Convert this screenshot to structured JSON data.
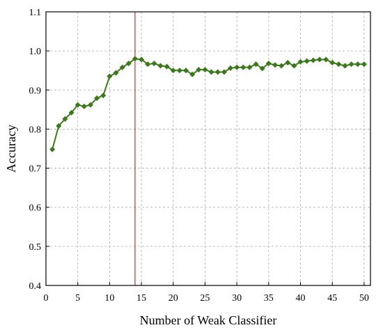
{
  "chart_data": {
    "type": "line",
    "xlabel": "Number of Weak Classifier",
    "ylabel": "Accuracy",
    "xlim": [
      0,
      51
    ],
    "ylim": [
      0.4,
      1.1
    ],
    "x_ticks": [
      0,
      5,
      10,
      15,
      20,
      25,
      30,
      35,
      40,
      45,
      50
    ],
    "x_tick_labels": [
      "0",
      "5",
      "10",
      "15",
      "20",
      "25",
      "30",
      "35",
      "40",
      "45",
      "50"
    ],
    "y_ticks": [
      0.4,
      0.5,
      0.6,
      0.7,
      0.8,
      0.9,
      1.0,
      1.1
    ],
    "y_tick_labels": [
      "0.4",
      "0.5",
      "0.6",
      "0.7",
      "0.8",
      "0.9",
      "1.0",
      "1.1"
    ],
    "grid": true,
    "legend": "none",
    "series": [
      {
        "color": "#3a7a1a",
        "marker": "diamond",
        "x": [
          1,
          2,
          3,
          4,
          5,
          6,
          7,
          8,
          9,
          10,
          11,
          12,
          13,
          14,
          15,
          16,
          17,
          18,
          19,
          20,
          21,
          22,
          23,
          24,
          25,
          26,
          27,
          28,
          29,
          30,
          31,
          32,
          33,
          34,
          35,
          36,
          37,
          38,
          39,
          40,
          41,
          42,
          43,
          44,
          45,
          46,
          47,
          48,
          49,
          50
        ],
        "y": [
          0.748,
          0.808,
          0.826,
          0.842,
          0.862,
          0.858,
          0.862,
          0.879,
          0.886,
          0.935,
          0.944,
          0.958,
          0.968,
          0.98,
          0.978,
          0.966,
          0.968,
          0.962,
          0.96,
          0.95,
          0.95,
          0.95,
          0.94,
          0.952,
          0.952,
          0.946,
          0.946,
          0.946,
          0.956,
          0.958,
          0.958,
          0.958,
          0.966,
          0.955,
          0.968,
          0.964,
          0.962,
          0.97,
          0.962,
          0.972,
          0.974,
          0.976,
          0.978,
          0.978,
          0.97,
          0.966,
          0.962,
          0.966,
          0.966,
          0.966
        ]
      }
    ],
    "reference_line": {
      "orientation": "vertical",
      "x": 14,
      "color": "#cc0000"
    }
  }
}
